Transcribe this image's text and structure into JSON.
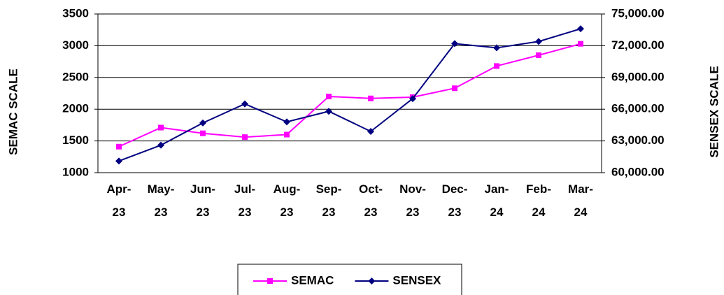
{
  "chart_data": {
    "type": "line",
    "categories": [
      "Apr-\n23",
      "May-\n23",
      "Jun-\n23",
      "Jul-\n23",
      "Aug-\n23",
      "Sep-\n23",
      "Oct-\n23",
      "Nov-\n23",
      "Dec-\n23",
      "Jan-\n24",
      "Feb-\n24",
      "Mar-\n24"
    ],
    "series": [
      {
        "name": "SEMAC",
        "color": "#ff00ff",
        "marker": "square",
        "axis": "y",
        "values": [
          1410,
          1710,
          1620,
          1560,
          1600,
          2200,
          2170,
          2190,
          2330,
          2680,
          2850,
          3030
        ]
      },
      {
        "name": "SENSEX",
        "color": "#000080",
        "marker": "diamond",
        "axis": "y2",
        "values": [
          61100,
          62600,
          64700,
          66500,
          64800,
          65800,
          63900,
          67000,
          72200,
          71800,
          72400,
          73600
        ]
      }
    ],
    "ylabel": "SEMAC SCALE",
    "y2label": "SENSEX SCALE",
    "ylim": [
      1000,
      3500
    ],
    "yticks": [
      1000,
      1500,
      2000,
      2500,
      3000,
      3500
    ],
    "y2lim": [
      60000,
      75000
    ],
    "y2ticks": [
      {
        "value": 60000,
        "label": "60,000.00"
      },
      {
        "value": 63000,
        "label": "63,000.00"
      },
      {
        "value": 66000,
        "label": "66,000.00"
      },
      {
        "value": 69000,
        "label": "69,000.00"
      },
      {
        "value": 72000,
        "label": "72,000.00"
      },
      {
        "value": 75000,
        "label": "75,000.00"
      }
    ],
    "grid": true,
    "legend": "bottom"
  }
}
